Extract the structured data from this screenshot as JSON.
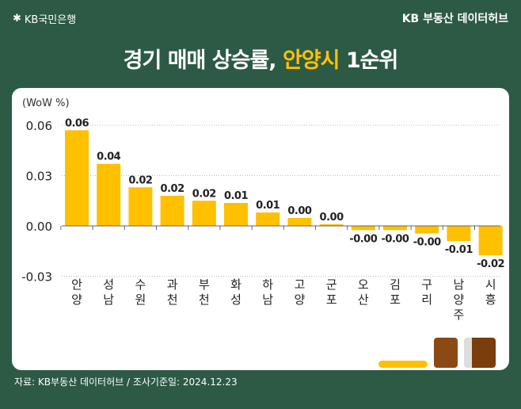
{
  "header": {
    "bank_logo": "KB국민은행",
    "hub": "KB 부동산 데이터허브",
    "title_pre": "경기 매매 상승률, ",
    "title_hl": "안양시",
    "title_post": " 1순위"
  },
  "footer": {
    "source": "자료: KB부동산 데이터허브 / 조사기준일: 2024.12.23"
  },
  "colors": {
    "bg": "#2c5a44",
    "bar": "#ffc000",
    "highlight": "#ffc107"
  },
  "chart_data": {
    "type": "bar",
    "unit_label": "(WoW %)",
    "categories": [
      "안양",
      "성남",
      "수원",
      "과천",
      "부천",
      "화성",
      "하남",
      "고양",
      "군포",
      "오산",
      "김포",
      "구리",
      "남양주",
      "시흥"
    ],
    "values": [
      0.057,
      0.037,
      0.023,
      0.018,
      0.015,
      0.0137,
      0.008,
      0.0047,
      0.001,
      -0.0025,
      -0.0025,
      -0.0045,
      -0.009,
      -0.0175
    ],
    "data_labels": [
      "0.06",
      "0.04",
      "0.02",
      "0.02",
      "0.02",
      "0.01",
      "0.01",
      "0.00",
      "0.00",
      "-0.00",
      "-0.00",
      "-0.00",
      "-0.01",
      "-0.02"
    ],
    "yticks": [
      0.06,
      0.03,
      0.0,
      -0.03
    ],
    "ytick_labels": [
      "0.06",
      "0.03",
      "0.00",
      "-0.03"
    ],
    "ylim": [
      -0.03,
      0.06
    ],
    "grid": true
  }
}
